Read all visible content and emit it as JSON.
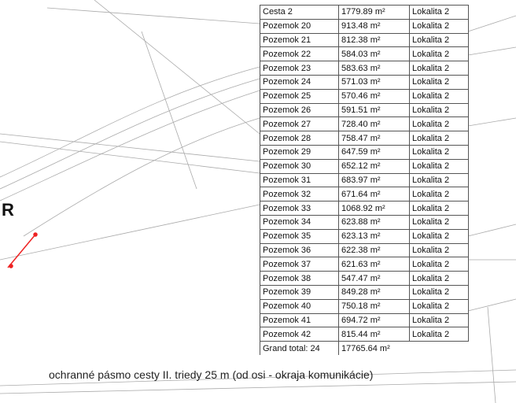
{
  "table": {
    "columns": 3,
    "rows": [
      [
        "Cesta 2",
        "1779.89 m²",
        "Lokalita 2"
      ],
      [
        "Pozemok 20",
        "913.48 m²",
        "Lokalita 2"
      ],
      [
        "Pozemok 21",
        "812.38 m²",
        "Lokalita 2"
      ],
      [
        "Pozemok 22",
        "584.03 m²",
        "Lokalita 2"
      ],
      [
        "Pozemok 23",
        "583.63 m²",
        "Lokalita 2"
      ],
      [
        "Pozemok 24",
        "571.03 m²",
        "Lokalita 2"
      ],
      [
        "Pozemok 25",
        "570.46 m²",
        "Lokalita 2"
      ],
      [
        "Pozemok 26",
        "591.51 m²",
        "Lokalita 2"
      ],
      [
        "Pozemok 27",
        "728.40 m²",
        "Lokalita 2"
      ],
      [
        "Pozemok 28",
        "758.47 m²",
        "Lokalita 2"
      ],
      [
        "Pozemok 29",
        "647.59 m²",
        "Lokalita 2"
      ],
      [
        "Pozemok 30",
        "652.12 m²",
        "Lokalita 2"
      ],
      [
        "Pozemok 31",
        "683.97 m²",
        "Lokalita 2"
      ],
      [
        "Pozemok 32",
        "671.64 m²",
        "Lokalita 2"
      ],
      [
        "Pozemok 33",
        "1068.92 m²",
        "Lokalita 2"
      ],
      [
        "Pozemok 34",
        "623.88 m²",
        "Lokalita 2"
      ],
      [
        "Pozemok 35",
        "623.13 m²",
        "Lokalita 2"
      ],
      [
        "Pozemok 36",
        "622.38 m²",
        "Lokalita 2"
      ],
      [
        "Pozemok 37",
        "621.63 m²",
        "Lokalita 2"
      ],
      [
        "Pozemok 38",
        "547.47 m²",
        "Lokalita 2"
      ],
      [
        "Pozemok 39",
        "849.28 m²",
        "Lokalita 2"
      ],
      [
        "Pozemok 40",
        "750.18 m²",
        "Lokalita 2"
      ],
      [
        "Pozemok 41",
        "694.72 m²",
        "Lokalita 2"
      ],
      [
        "Pozemok 42",
        "815.44 m²",
        "Lokalita 2"
      ],
      [
        "Grand total: 24",
        "17765.64 m²"
      ]
    ]
  },
  "map": {
    "letter": "R",
    "note": "ochranné pásmo cesty II. triedy 25 m (od osi - okraja komunikácie)"
  }
}
